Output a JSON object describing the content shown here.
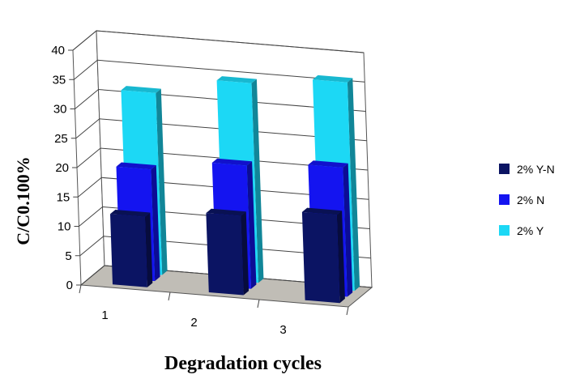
{
  "chart_data": {
    "type": "bar",
    "categories": [
      "1",
      "2",
      "3"
    ],
    "series": [
      {
        "name": "2% Y-N",
        "values": [
          12,
          13.5,
          15
        ],
        "color": "#0b1463"
      },
      {
        "name": "2% N",
        "values": [
          19,
          21,
          22
        ],
        "color": "#1414f0"
      },
      {
        "name": "2% Y",
        "values": [
          31,
          34,
          35.5
        ],
        "color": "#1cd8f5"
      }
    ],
    "title": "",
    "xlabel": "Degradation cycles",
    "ylabel": "C/C0.100%",
    "ylim": [
      0,
      40
    ],
    "yticks": [
      0,
      5,
      10,
      15,
      20,
      25,
      30,
      35,
      40
    ],
    "grid": true,
    "legend_position": "right",
    "floor_color": "#c0bdb6"
  }
}
